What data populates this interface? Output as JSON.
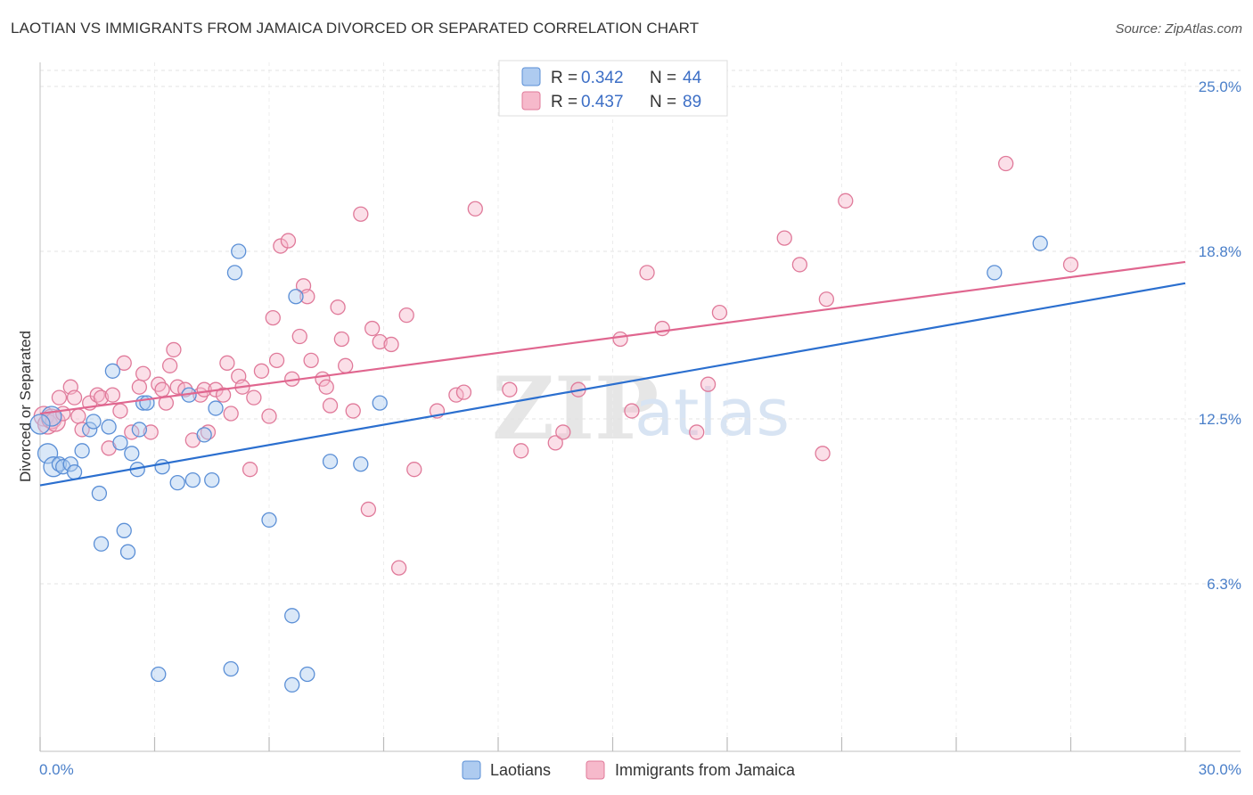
{
  "title": "LAOTIAN VS IMMIGRANTS FROM JAMAICA DIVORCED OR SEPARATED CORRELATION CHART",
  "source": "Source: ZipAtlas.com",
  "watermark": {
    "zip": "ZIP",
    "atlas": "atlas"
  },
  "legend": {
    "r_label": "R =",
    "n_label": "N =",
    "rows": [
      {
        "r": "0.342",
        "n": "44"
      },
      {
        "r": "0.437",
        "n": "89"
      }
    ]
  },
  "chart_data": {
    "type": "scatter",
    "title": "LAOTIAN VS IMMIGRANTS FROM JAMAICA DIVORCED OR SEPARATED CORRELATION CHART",
    "xlabel": "",
    "ylabel": "Divorced or Separated",
    "xlim": [
      0,
      30
    ],
    "ylim": [
      0,
      26.5
    ],
    "x_tick_labels": [
      "0.0%",
      "30.0%"
    ],
    "y_ticks": [
      6.3,
      12.5,
      18.8,
      25.0
    ],
    "y_tick_labels": [
      "6.3%",
      "12.5%",
      "18.8%",
      "25.0%"
    ],
    "grid": true,
    "legend_position": "top-center",
    "colors": {
      "laotians_fill": "#aecbf0",
      "laotians_stroke": "#5b8fd6",
      "laotians_line": "#2b6fcf",
      "jamaica_fill": "#f6b9cb",
      "jamaica_stroke": "#e07a9a",
      "jamaica_line": "#e0668f",
      "tick_label": "#4a7fc9"
    },
    "series": [
      {
        "name": "Laotians",
        "r": 0.342,
        "n": 44,
        "trend": {
          "x": [
            0,
            30
          ],
          "y": [
            10.0,
            17.6
          ]
        },
        "points": [
          [
            0.2,
            11.2
          ],
          [
            0.3,
            12.6
          ],
          [
            0.35,
            10.7
          ],
          [
            0.5,
            10.8
          ],
          [
            0.6,
            10.7
          ],
          [
            0.8,
            10.8
          ],
          [
            0.9,
            10.5
          ],
          [
            1.1,
            11.3
          ],
          [
            1.3,
            12.1
          ],
          [
            1.4,
            12.4
          ],
          [
            1.55,
            9.7
          ],
          [
            1.6,
            7.8
          ],
          [
            1.8,
            12.2
          ],
          [
            1.9,
            14.3
          ],
          [
            2.1,
            11.6
          ],
          [
            2.2,
            8.3
          ],
          [
            2.3,
            7.5
          ],
          [
            2.4,
            11.2
          ],
          [
            2.55,
            10.6
          ],
          [
            2.6,
            12.1
          ],
          [
            2.7,
            13.1
          ],
          [
            2.8,
            13.1
          ],
          [
            3.1,
            2.9
          ],
          [
            3.2,
            10.7
          ],
          [
            3.6,
            10.1
          ],
          [
            3.9,
            13.4
          ],
          [
            4.0,
            10.2
          ],
          [
            4.3,
            11.9
          ],
          [
            4.5,
            10.2
          ],
          [
            4.6,
            12.9
          ],
          [
            5.0,
            3.1
          ],
          [
            5.1,
            18.0
          ],
          [
            5.2,
            18.8
          ],
          [
            6.0,
            8.7
          ],
          [
            6.6,
            5.1
          ],
          [
            6.6,
            2.5
          ],
          [
            6.7,
            17.1
          ],
          [
            7.0,
            2.9
          ],
          [
            7.6,
            10.9
          ],
          [
            8.4,
            10.8
          ],
          [
            8.9,
            13.1
          ],
          [
            25.0,
            18.0
          ],
          [
            26.2,
            19.1
          ],
          [
            0.0,
            12.3
          ]
        ]
      },
      {
        "name": "Immigrants from Jamaica",
        "r": 0.437,
        "n": 89,
        "trend": {
          "x": [
            0,
            30
          ],
          "y": [
            12.7,
            18.4
          ]
        },
        "points": [
          [
            0.1,
            12.6
          ],
          [
            0.2,
            12.3
          ],
          [
            0.3,
            12.5
          ],
          [
            0.4,
            12.4
          ],
          [
            0.5,
            13.3
          ],
          [
            0.6,
            12.7
          ],
          [
            0.8,
            13.7
          ],
          [
            0.9,
            13.3
          ],
          [
            1.0,
            12.6
          ],
          [
            1.1,
            12.1
          ],
          [
            1.3,
            13.1
          ],
          [
            1.5,
            13.4
          ],
          [
            1.6,
            13.3
          ],
          [
            1.8,
            11.4
          ],
          [
            1.9,
            13.4
          ],
          [
            2.1,
            12.8
          ],
          [
            2.2,
            14.6
          ],
          [
            2.4,
            12.0
          ],
          [
            2.6,
            13.7
          ],
          [
            2.7,
            14.2
          ],
          [
            2.9,
            12.0
          ],
          [
            3.1,
            13.8
          ],
          [
            3.2,
            13.6
          ],
          [
            3.3,
            13.1
          ],
          [
            3.4,
            14.5
          ],
          [
            3.5,
            15.1
          ],
          [
            3.6,
            13.7
          ],
          [
            3.8,
            13.6
          ],
          [
            4.0,
            11.7
          ],
          [
            4.2,
            13.4
          ],
          [
            4.3,
            13.6
          ],
          [
            4.4,
            12.0
          ],
          [
            4.6,
            13.6
          ],
          [
            4.8,
            13.4
          ],
          [
            4.9,
            14.6
          ],
          [
            5.0,
            12.7
          ],
          [
            5.2,
            14.1
          ],
          [
            5.3,
            13.7
          ],
          [
            5.5,
            10.6
          ],
          [
            5.6,
            13.3
          ],
          [
            5.8,
            14.3
          ],
          [
            6.0,
            12.6
          ],
          [
            6.1,
            16.3
          ],
          [
            6.2,
            14.7
          ],
          [
            6.3,
            19.0
          ],
          [
            6.5,
            19.2
          ],
          [
            6.6,
            14.0
          ],
          [
            6.8,
            15.6
          ],
          [
            6.9,
            17.5
          ],
          [
            7.0,
            17.1
          ],
          [
            7.1,
            14.7
          ],
          [
            7.4,
            14.0
          ],
          [
            7.5,
            13.7
          ],
          [
            7.6,
            13.0
          ],
          [
            7.8,
            16.7
          ],
          [
            7.9,
            15.5
          ],
          [
            8.0,
            14.5
          ],
          [
            8.2,
            12.8
          ],
          [
            8.4,
            20.2
          ],
          [
            8.6,
            9.1
          ],
          [
            8.7,
            15.9
          ],
          [
            8.9,
            15.4
          ],
          [
            9.2,
            15.3
          ],
          [
            9.4,
            6.9
          ],
          [
            9.6,
            16.4
          ],
          [
            9.8,
            10.6
          ],
          [
            10.4,
            12.8
          ],
          [
            10.9,
            13.4
          ],
          [
            11.1,
            13.5
          ],
          [
            11.4,
            20.4
          ],
          [
            12.3,
            13.6
          ],
          [
            12.6,
            11.3
          ],
          [
            13.5,
            11.6
          ],
          [
            13.7,
            12.0
          ],
          [
            14.1,
            13.6
          ],
          [
            15.2,
            15.5
          ],
          [
            15.5,
            12.8
          ],
          [
            15.9,
            18.0
          ],
          [
            16.3,
            15.9
          ],
          [
            17.2,
            12.0
          ],
          [
            17.5,
            13.8
          ],
          [
            17.8,
            16.5
          ],
          [
            19.5,
            19.3
          ],
          [
            19.9,
            18.3
          ],
          [
            20.5,
            11.2
          ],
          [
            20.6,
            17.0
          ],
          [
            21.1,
            20.7
          ],
          [
            25.3,
            22.1
          ],
          [
            27.0,
            18.3
          ]
        ]
      }
    ]
  }
}
